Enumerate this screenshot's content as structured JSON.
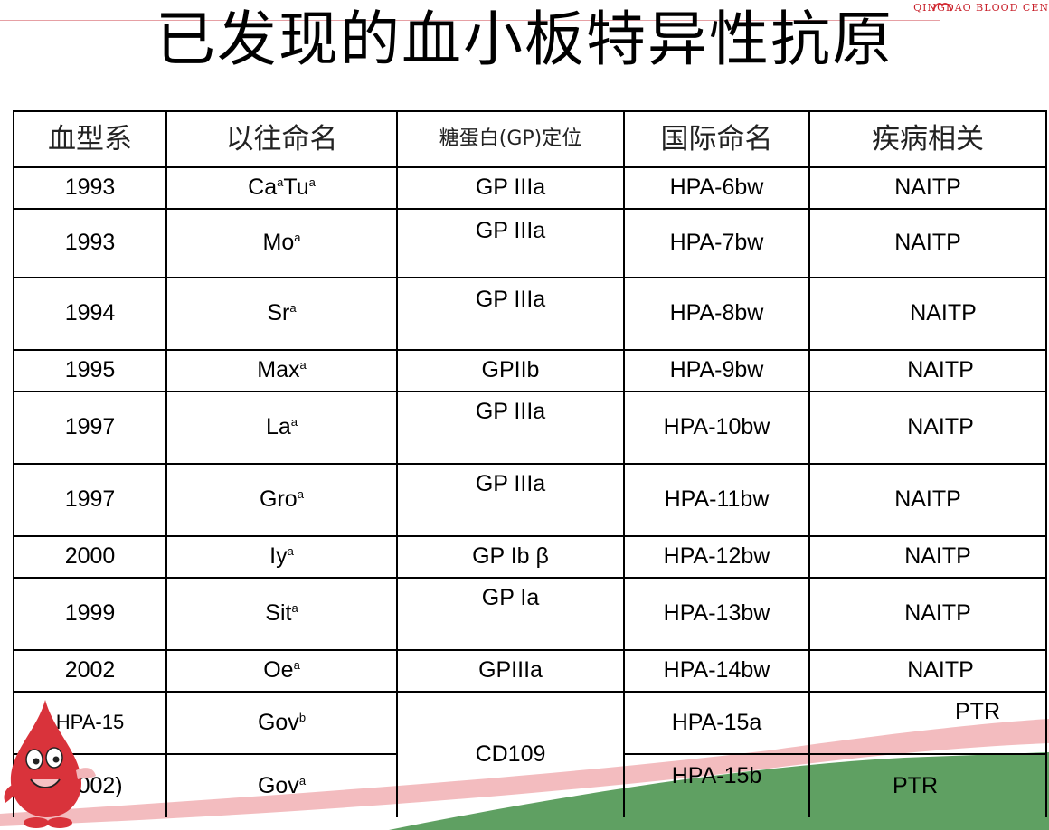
{
  "slide": {
    "title": "已发现的血小板特异性抗原",
    "logo_text": "QINGDAO BLOOD CEN"
  },
  "table": {
    "headers": [
      "血型系",
      "以往命名",
      "糖蛋白(GP)定位",
      "国际命名",
      "疾病相关"
    ],
    "rows": [
      {
        "year": "1993",
        "old_name": "Ca",
        "old_sup": "a",
        "old_name2": "Tu",
        "old_sup2": "a",
        "gp": "GP IIIa",
        "intl": "HPA-6bw",
        "disease": "NAITP"
      },
      {
        "year": "1993",
        "old_name": "Mo",
        "old_sup": "a",
        "gp": "GP IIIa",
        "intl": "HPA-7bw",
        "disease": "NAITP"
      },
      {
        "year": "1994",
        "old_name": "Sr",
        "old_sup": "a",
        "gp": "GP IIIa",
        "intl": "HPA-8bw",
        "disease": "NAITP"
      },
      {
        "year": "1995",
        "old_name": "Max",
        "old_sup": "a",
        "gp": "GPIIb",
        "intl": "HPA-9bw",
        "disease": "NAITP"
      },
      {
        "year": "1997",
        "old_name": "La",
        "old_sup": "a",
        "gp": "GP IIIa",
        "intl": "HPA-10bw",
        "disease": "NAITP"
      },
      {
        "year": "1997",
        "old_name": "Gro",
        "old_sup": "a",
        "gp": "GP IIIa",
        "intl": "HPA-11bw",
        "disease": "NAITP"
      },
      {
        "year": "2000",
        "old_name": "Iy",
        "old_sup": "a",
        "gp": "GP Ib β",
        "intl": "HPA-12bw",
        "disease": "NAITP"
      },
      {
        "year": "1999",
        "old_name": "Sit",
        "old_sup": "a",
        "gp": "GP Ia",
        "intl": "HPA-13bw",
        "disease": "NAITP"
      },
      {
        "year": "2002",
        "old_name": "Oe",
        "old_sup": "a",
        "gp": "GPIIIa",
        "intl": "HPA-14bw",
        "disease": "NAITP"
      },
      {
        "year": "HPA-15",
        "old_name": "Gov",
        "old_sup": "b",
        "gp": "CD109",
        "intl": "HPA-15a",
        "disease": "PTR"
      },
      {
        "year": "(2002)",
        "old_name": "Gov",
        "old_sup": "a",
        "intl": "HPA-15b",
        "disease": "PTR"
      }
    ]
  },
  "colors": {
    "accent_red": "#d9333b",
    "swoosh_pink": "#f2b5b8",
    "swoosh_green": "#5fa062"
  }
}
